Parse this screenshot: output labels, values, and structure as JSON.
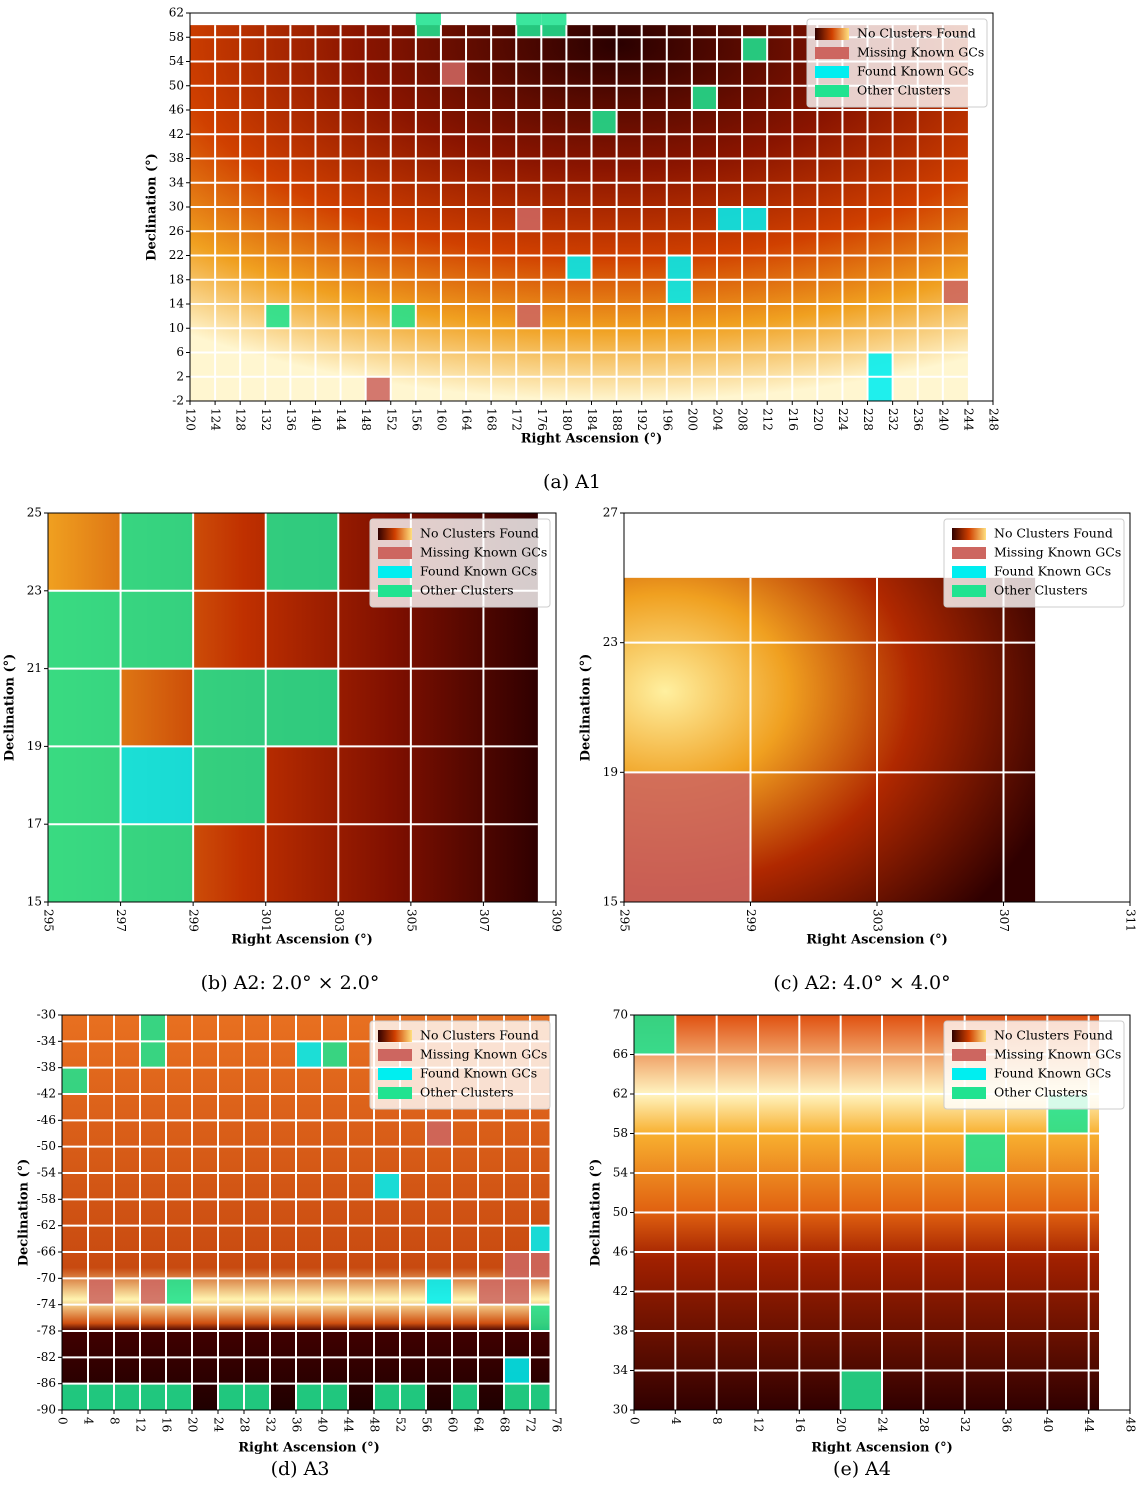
{
  "chart_data": [
    {
      "type": "cell-map",
      "caption": "(a) A1",
      "xlabel": "Right Ascension (°)",
      "ylabel": "Declination (°)",
      "xlim": [
        120,
        248
      ],
      "ylim": [
        -2,
        62
      ],
      "xticks": [
        120,
        124,
        128,
        132,
        136,
        140,
        144,
        148,
        152,
        156,
        160,
        164,
        168,
        172,
        176,
        180,
        184,
        188,
        192,
        196,
        200,
        204,
        208,
        212,
        216,
        220,
        224,
        228,
        232,
        236,
        240,
        244,
        248
      ],
      "yticks": [
        -2,
        2,
        6,
        10,
        14,
        18,
        22,
        26,
        30,
        34,
        38,
        42,
        46,
        50,
        54,
        58,
        62
      ],
      "data_xlim": [
        120,
        244
      ],
      "data_ylim": [
        -2,
        60
      ],
      "cell": [
        4,
        4
      ],
      "legend": "upper right",
      "series": [
        {
          "name": "No Clusters Found"
        },
        {
          "name": "Missing Known GCs",
          "color": "#cd6660",
          "x": [
            160,
            172,
            172,
            240,
            148
          ],
          "y": [
            50,
            26,
            10,
            14,
            -2
          ]
        },
        {
          "name": "Found Known GCs",
          "color": "#00eef0",
          "x": [
            204,
            208,
            180,
            196,
            196,
            228,
            228
          ],
          "y": [
            26,
            26,
            18,
            18,
            14,
            2,
            -2
          ]
        },
        {
          "name": "Other Clusters",
          "color": "#20e390",
          "x": [
            156,
            172,
            176,
            208,
            200,
            184,
            132,
            152
          ],
          "y": [
            58,
            58,
            58,
            54,
            46,
            42,
            10,
            10
          ]
        }
      ]
    },
    {
      "type": "cell-map",
      "caption": "(b) A2:  2.0° × 2.0°",
      "xlabel": "Right Ascension (°)",
      "ylabel": "Declination (°)",
      "xlim": [
        295,
        309
      ],
      "ylim": [
        15,
        25
      ],
      "xticks": [
        295,
        297,
        299,
        301,
        303,
        305,
        307,
        309
      ],
      "yticks": [
        15,
        17,
        19,
        21,
        23,
        25
      ],
      "data_xlim": [
        295,
        308.5
      ],
      "data_ylim": [
        15,
        25
      ],
      "cell": [
        2,
        2
      ],
      "legend": "upper right",
      "series": [
        {
          "name": "No Clusters Found"
        },
        {
          "name": "Missing Known GCs",
          "color": "#cd6660",
          "x": [],
          "y": []
        },
        {
          "name": "Found Known GCs",
          "color": "#00eef0",
          "x": [
            297
          ],
          "y": [
            17
          ]
        },
        {
          "name": "Other Clusters",
          "color": "#20e390",
          "x": [
            297,
            301,
            295,
            297,
            295,
            299,
            301,
            295,
            299,
            295,
            297
          ],
          "y": [
            23,
            23,
            21,
            21,
            19,
            19,
            19,
            17,
            17,
            15,
            15
          ]
        }
      ]
    },
    {
      "type": "cell-map",
      "caption": "(c) A2:  4.0° × 4.0°",
      "xlabel": "Right Ascension (°)",
      "ylabel": "Declination (°)",
      "xlim": [
        295,
        311
      ],
      "ylim": [
        15,
        27
      ],
      "xticks": [
        295,
        299,
        303,
        307,
        311
      ],
      "yticks": [
        15,
        19,
        23,
        27
      ],
      "data_xlim": [
        295,
        308
      ],
      "data_ylim": [
        15,
        25
      ],
      "cell": [
        4,
        4
      ],
      "legend": "upper right",
      "series": [
        {
          "name": "No Clusters Found"
        },
        {
          "name": "Missing Known GCs",
          "color": "#cd6660",
          "x": [
            295
          ],
          "y": [
            15
          ]
        },
        {
          "name": "Found Known GCs",
          "color": "#00eef0",
          "x": [],
          "y": []
        },
        {
          "name": "Other Clusters",
          "color": "#20e390",
          "x": [],
          "y": []
        }
      ]
    },
    {
      "type": "cell-map",
      "caption": "(d) A3",
      "xlabel": "Right Ascension (°)",
      "ylabel": "Declination (°)",
      "xlim": [
        0,
        76
      ],
      "ylim": [
        -90,
        -30
      ],
      "xticks": [
        0,
        4,
        8,
        12,
        16,
        20,
        24,
        28,
        32,
        36,
        40,
        44,
        48,
        52,
        56,
        60,
        64,
        68,
        72,
        76
      ],
      "yticks": [
        -90,
        -86,
        -82,
        -78,
        -74,
        -70,
        -66,
        -62,
        -58,
        -54,
        -50,
        -46,
        -42,
        -38,
        -34,
        -30
      ],
      "data_xlim": [
        0,
        75
      ],
      "data_ylim": [
        -90,
        -30
      ],
      "cell": [
        4,
        4
      ],
      "legend": "upper right",
      "series": [
        {
          "name": "No Clusters Found"
        },
        {
          "name": "Missing Known GCs",
          "color": "#cd6660",
          "x": [
            56,
            68,
            72,
            4,
            12,
            64,
            68
          ],
          "y": [
            -50,
            -70,
            -70,
            -74,
            -74,
            -74,
            -74
          ]
        },
        {
          "name": "Found Known GCs",
          "color": "#00eef0",
          "x": [
            36,
            48,
            72,
            56,
            68
          ],
          "y": [
            -38,
            -58,
            -66,
            -74,
            -86
          ]
        },
        {
          "name": "Other Clusters",
          "color": "#20e390",
          "x": [
            12,
            12,
            40,
            0,
            16,
            72,
            0,
            4,
            8,
            12,
            16,
            24,
            28,
            36,
            40,
            48,
            52,
            60,
            68,
            72
          ],
          "y": [
            -34,
            -38,
            -38,
            -42,
            -74,
            -78,
            -90,
            -90,
            -90,
            -90,
            -90,
            -90,
            -90,
            -90,
            -90,
            -90,
            -90,
            -90,
            -90,
            -90
          ]
        }
      ]
    },
    {
      "type": "cell-map",
      "caption": "(e) A4",
      "xlabel": "Right Ascension (°)",
      "ylabel": "Declination (°)",
      "xlim": [
        0,
        48
      ],
      "ylim": [
        30,
        70
      ],
      "xticks": [
        0,
        4,
        8,
        12,
        16,
        20,
        24,
        28,
        32,
        36,
        40,
        44,
        48
      ],
      "yticks": [
        30,
        34,
        38,
        42,
        46,
        50,
        54,
        58,
        62,
        66,
        70
      ],
      "data_xlim": [
        0,
        45
      ],
      "data_ylim": [
        30,
        70
      ],
      "cell": [
        4,
        4
      ],
      "legend": "upper right",
      "series": [
        {
          "name": "No Clusters Found"
        },
        {
          "name": "Missing Known GCs",
          "color": "#cd6660",
          "x": [],
          "y": []
        },
        {
          "name": "Found Known GCs",
          "color": "#00eef0",
          "x": [],
          "y": []
        },
        {
          "name": "Other Clusters",
          "color": "#20e390",
          "x": [
            0,
            40,
            32,
            20
          ],
          "y": [
            66,
            58,
            54,
            30
          ]
        }
      ]
    }
  ]
}
